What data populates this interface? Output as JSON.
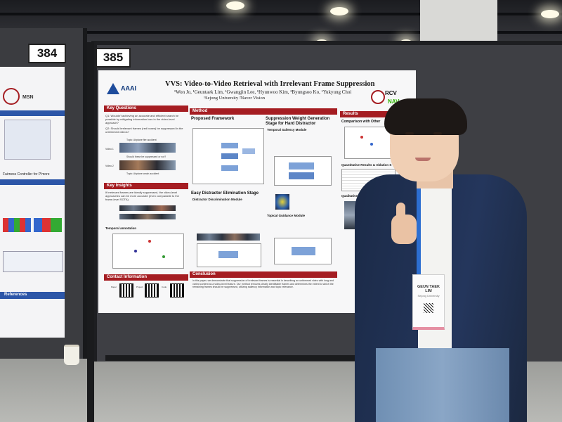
{
  "scene": {
    "left_board_number": "384",
    "main_board_number": "385"
  },
  "left_poster": {
    "logo_text": "MSN",
    "caption": "Fairness Controller for P'more",
    "heading": "References"
  },
  "poster": {
    "logos": {
      "aaai": "AAAI",
      "rcv": "RCV",
      "naver": "NAV"
    },
    "title": "VVS: Video-to-Video Retrieval with Irrelevant Frame Suppression",
    "authors": "¹Won Jo, ¹Geuntaek Lim, ¹Gwangjin Lee, ¹Hyunwoo Kim, ²Byungsoo Ko, ¹Yukyung Choi",
    "affiliations": "¹Sejong University   ²Naver Vision",
    "sections": {
      "key_questions": "Key Questions",
      "key_insights": "Key Insights",
      "contact": "Contact Information",
      "method": "Method",
      "conclusion": "Conclusion",
      "results": "Results"
    },
    "subheadings": {
      "proposed_framework": "Proposed Framework",
      "easy_distractor": "Easy Distractor Elimination Stage",
      "weight_generation": "Suppression Weight Generation Stage for Hard Distractor",
      "temporal_saliency": "Temporal Saliency Module",
      "topical_guidance": "Topical Guidance Module",
      "distractor_discrimination": "Distractor Discrimination Module",
      "comparison": "Comparison with Other",
      "quantitative": "Quantitative Results & Ablation S",
      "qualitative": "Qualitative Results",
      "temporal_annotation": "Temporal annotation"
    },
    "questions": [
      "Q1: Wouldn't achieving an accurate and efficient search be possible by mitigating information loss in the video-level approach?",
      "Q2: Should irrelevant frames (red boxes) be suppressed in the untrimmed videos?"
    ],
    "figure_labels": {
      "video1": "Video 1",
      "video2": "Video 2",
      "topic1": "Topic: Airplane fire accident",
      "topic2": "Topic: Airplane crash accident",
      "question": "Should these be suppressed or not?"
    },
    "insight": "If irrelevant frames are ideally suppressed, the video-level approaches can be more accurate (even comparable to the frame-level SOTA).",
    "conclusion": "In this paper, we demonstrate that suppression of irrelevant frames is essential in describing an untrimmed video with long and varied content as a video-level feature. Our method removes clearly identifiable frames and determines the extent to which the remaining frames should be suppressed, utilizing saliency information and topic relevance.",
    "qr_labels": [
      "Paper",
      "Project",
      "Code"
    ]
  },
  "presenter_badge": {
    "name": "GEUN TAEK LIM",
    "affiliation": "Sejong University"
  },
  "colors": {
    "section_red": "#a51d22",
    "jacket_navy": "#1f2f50",
    "aaai_blue": "#1e4c9c"
  }
}
